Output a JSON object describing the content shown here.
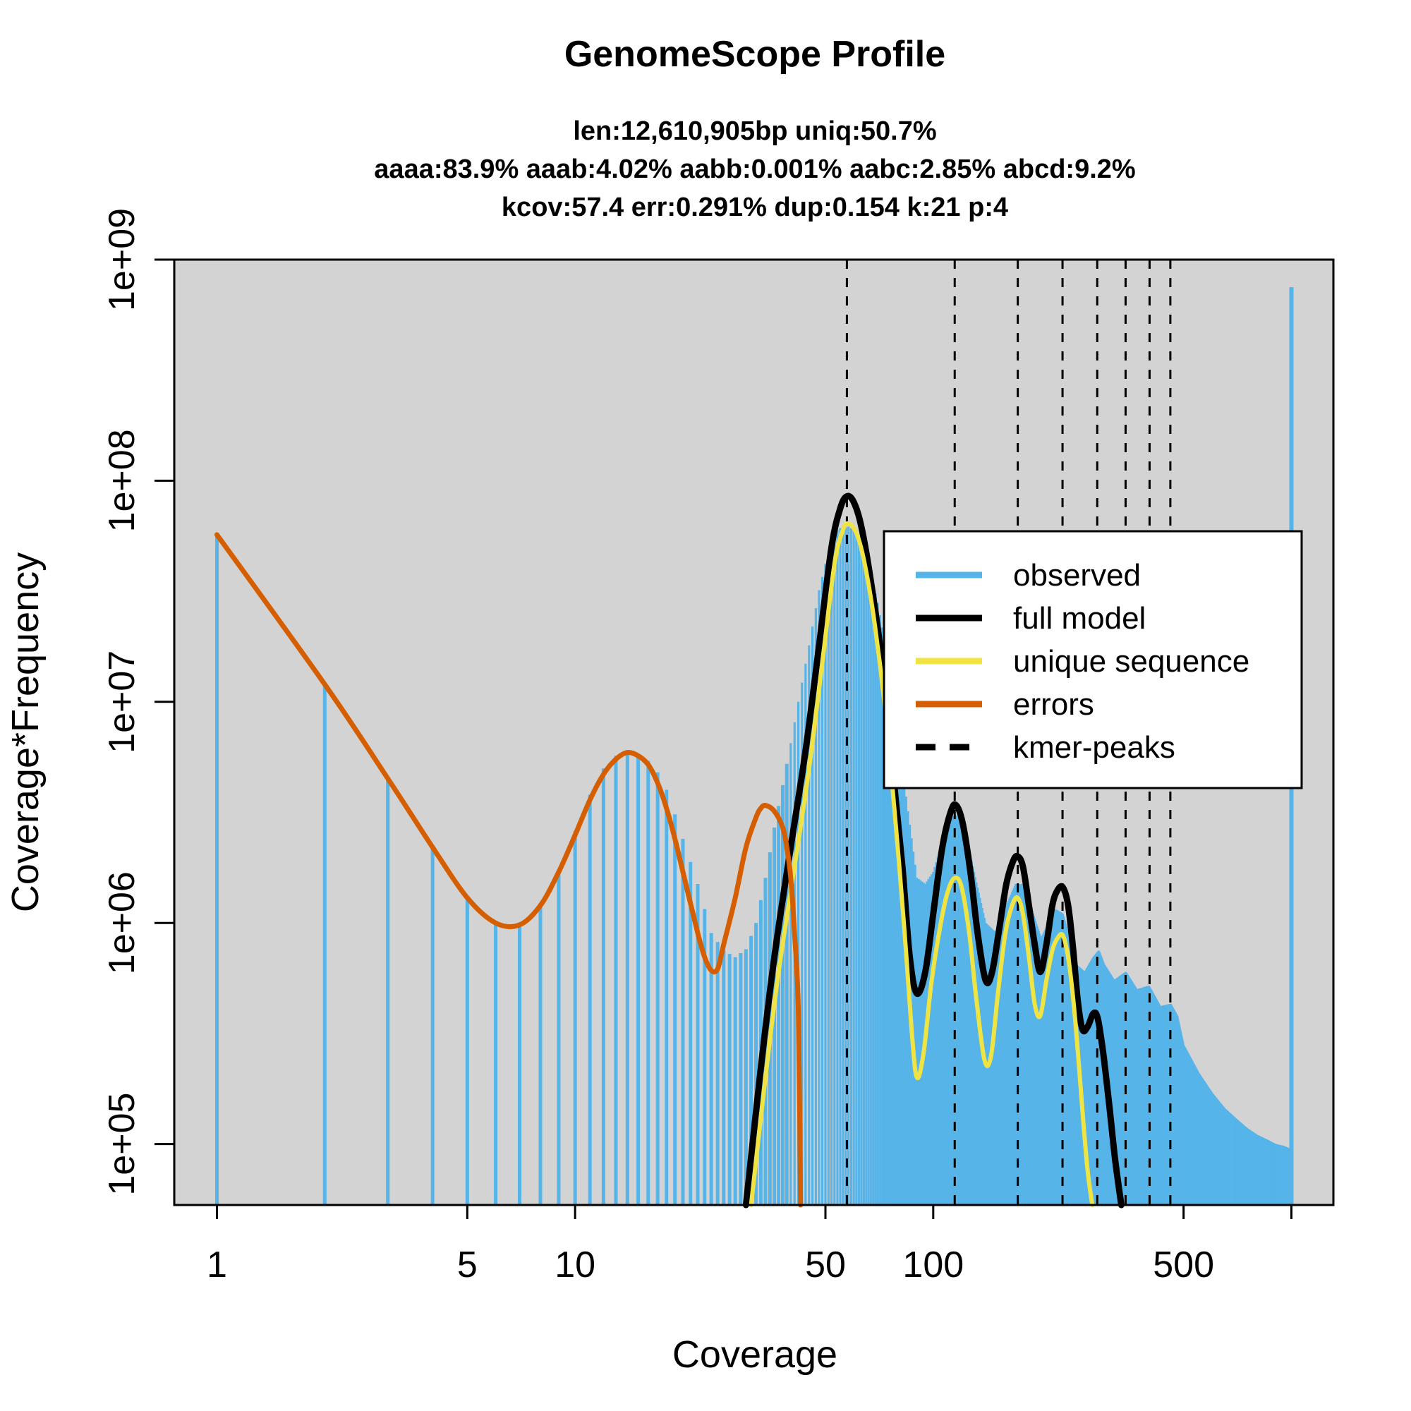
{
  "chart_data": {
    "type": "bar",
    "title": "GenomeScope Profile",
    "subtitle_lines": [
      "len:12,610,905bp uniq:50.7%",
      "aaaa:83.9% aaab:4.02% aabb:0.001% aabc:2.85% abcd:9.2%",
      "kcov:57.4 err:0.291%  dup:0.154  k:21 p:4"
    ],
    "xlabel": "Coverage",
    "ylabel": "Coverage*Frequency",
    "x_scale": "log",
    "y_scale": "log",
    "xlim": [
      0.76,
      1310
    ],
    "ylim": [
      53000,
      1000000000
    ],
    "x_ticks": [
      {
        "value": 1,
        "label": "1"
      },
      {
        "value": 5,
        "label": "5"
      },
      {
        "value": 10,
        "label": "10"
      },
      {
        "value": 50,
        "label": "50"
      },
      {
        "value": 100,
        "label": "100"
      },
      {
        "value": 500,
        "label": "500"
      },
      {
        "value": 1000,
        "label": ""
      }
    ],
    "y_ticks": [
      {
        "value": 100000,
        "label": "1e+05"
      },
      {
        "value": 1000000,
        "label": "1e+06"
      },
      {
        "value": 10000000,
        "label": "1e+07"
      },
      {
        "value": 100000000,
        "label": "1e+08"
      },
      {
        "value": 1000000000,
        "label": "1e+09"
      }
    ],
    "kmer_peaks": [
      57.4,
      114.8,
      172.2,
      229.6,
      287,
      344.4,
      401.8,
      459.2
    ],
    "colors": {
      "observed": "#56B4E9",
      "full_model": "#000000",
      "unique_sequence": "#F0E442",
      "errors": "#D55E00",
      "panel_background": "#D3D3D3"
    },
    "observed_profile": [
      [
        1,
        57000000
      ],
      [
        2,
        12000000
      ],
      [
        3,
        4600000
      ],
      [
        4,
        2200000
      ],
      [
        5,
        1300000
      ],
      [
        6,
        1000000
      ],
      [
        7,
        980000
      ],
      [
        8,
        1200000
      ],
      [
        9,
        1700000
      ],
      [
        10,
        2600000
      ],
      [
        11,
        3800000
      ],
      [
        12,
        5000000
      ],
      [
        13,
        5700000
      ],
      [
        14,
        5900000
      ],
      [
        15,
        5800000
      ],
      [
        16,
        5400000
      ],
      [
        17,
        4800000
      ],
      [
        18,
        4000000
      ],
      [
        19,
        3100000
      ],
      [
        20,
        2400000
      ],
      [
        22,
        1500000
      ],
      [
        24,
        900000
      ],
      [
        26,
        750000
      ],
      [
        28,
        700000
      ],
      [
        30,
        760000
      ],
      [
        32,
        1000000
      ],
      [
        34,
        1600000
      ],
      [
        36,
        2700000
      ],
      [
        38,
        4200000
      ],
      [
        40,
        6500000
      ],
      [
        42,
        10000000
      ],
      [
        45,
        18000000
      ],
      [
        48,
        32000000
      ],
      [
        51,
        48000000
      ],
      [
        54,
        60000000
      ],
      [
        57,
        63000000
      ],
      [
        60,
        60000000
      ],
      [
        63,
        52000000
      ],
      [
        66,
        42000000
      ],
      [
        70,
        28000000
      ],
      [
        75,
        15000000
      ],
      [
        80,
        7000000
      ],
      [
        85,
        3200000
      ],
      [
        90,
        1600000
      ],
      [
        95,
        1500000
      ],
      [
        100,
        1700000
      ],
      [
        105,
        2200000
      ],
      [
        110,
        2800000
      ],
      [
        115,
        3100000
      ],
      [
        120,
        2900000
      ],
      [
        125,
        2300000
      ],
      [
        130,
        1700000
      ],
      [
        140,
        1000000
      ],
      [
        150,
        900000
      ],
      [
        160,
        1200000
      ],
      [
        170,
        1500000
      ],
      [
        180,
        1500000
      ],
      [
        190,
        1100000
      ],
      [
        200,
        850000
      ],
      [
        210,
        1000000
      ],
      [
        220,
        1150000
      ],
      [
        230,
        1100000
      ],
      [
        240,
        850000
      ],
      [
        250,
        650000
      ],
      [
        265,
        600000
      ],
      [
        280,
        700000
      ],
      [
        290,
        750000
      ],
      [
        300,
        650000
      ],
      [
        320,
        550000
      ],
      [
        345,
        600000
      ],
      [
        370,
        500000
      ],
      [
        400,
        520000
      ],
      [
        430,
        420000
      ],
      [
        460,
        430000
      ],
      [
        480,
        380000
      ],
      [
        500,
        280000
      ],
      [
        550,
        210000
      ],
      [
        600,
        170000
      ],
      [
        650,
        145000
      ],
      [
        700,
        130000
      ],
      [
        750,
        118000
      ],
      [
        800,
        110000
      ],
      [
        850,
        105000
      ],
      [
        900,
        100000
      ],
      [
        950,
        98000
      ],
      [
        990,
        95000
      ]
    ],
    "observed_spike": [
      1000,
      750000000
    ],
    "series": [
      {
        "name": "full model",
        "points": [
          [
            30,
            53000
          ],
          [
            33,
            220000
          ],
          [
            36,
            700000
          ],
          [
            40,
            2200000
          ],
          [
            44,
            6000000
          ],
          [
            48,
            18000000
          ],
          [
            52,
            50000000
          ],
          [
            55,
            75000000
          ],
          [
            57.4,
            85000000
          ],
          [
            60,
            80000000
          ],
          [
            63,
            62000000
          ],
          [
            67,
            35000000
          ],
          [
            72,
            15000000
          ],
          [
            77,
            5000000
          ],
          [
            82,
            1800000
          ],
          [
            86,
            700000
          ],
          [
            90,
            480000
          ],
          [
            95,
            600000
          ],
          [
            100,
            1100000
          ],
          [
            106,
            2200000
          ],
          [
            112,
            3200000
          ],
          [
            116,
            3400000
          ],
          [
            121,
            2800000
          ],
          [
            127,
            1700000
          ],
          [
            133,
            900000
          ],
          [
            140,
            550000
          ],
          [
            146,
            600000
          ],
          [
            153,
            950000
          ],
          [
            160,
            1500000
          ],
          [
            167,
            1900000
          ],
          [
            172,
            2000000
          ],
          [
            178,
            1800000
          ],
          [
            185,
            1200000
          ],
          [
            192,
            800000
          ],
          [
            199,
            600000
          ],
          [
            207,
            800000
          ],
          [
            215,
            1200000
          ],
          [
            222,
            1400000
          ],
          [
            230,
            1450000
          ],
          [
            238,
            1200000
          ],
          [
            246,
            750000
          ],
          [
            253,
            450000
          ],
          [
            261,
            330000
          ],
          [
            270,
            340000
          ],
          [
            280,
            390000
          ],
          [
            288,
            370000
          ],
          [
            298,
            260000
          ],
          [
            310,
            150000
          ],
          [
            322,
            85000
          ],
          [
            335,
            53000
          ]
        ]
      },
      {
        "name": "unique sequence",
        "points": [
          [
            31,
            53000
          ],
          [
            34,
            200000
          ],
          [
            37,
            600000
          ],
          [
            41,
            1800000
          ],
          [
            45,
            5000000
          ],
          [
            49,
            15000000
          ],
          [
            53,
            42000000
          ],
          [
            56,
            60000000
          ],
          [
            58,
            64000000
          ],
          [
            61,
            58000000
          ],
          [
            64,
            44000000
          ],
          [
            68,
            25000000
          ],
          [
            73,
            10000000
          ],
          [
            78,
            3200000
          ],
          [
            83,
            950000
          ],
          [
            87,
            330000
          ],
          [
            90,
            200000
          ],
          [
            94,
            260000
          ],
          [
            99,
            550000
          ],
          [
            105,
            1000000
          ],
          [
            110,
            1400000
          ],
          [
            115,
            1600000
          ],
          [
            120,
            1450000
          ],
          [
            126,
            900000
          ],
          [
            132,
            450000
          ],
          [
            139,
            240000
          ],
          [
            145,
            250000
          ],
          [
            152,
            500000
          ],
          [
            159,
            900000
          ],
          [
            166,
            1200000
          ],
          [
            172,
            1300000
          ],
          [
            178,
            1100000
          ],
          [
            185,
            700000
          ],
          [
            192,
            430000
          ],
          [
            199,
            380000
          ],
          [
            207,
            550000
          ],
          [
            215,
            750000
          ],
          [
            222,
            850000
          ],
          [
            230,
            880000
          ],
          [
            238,
            700000
          ],
          [
            246,
            450000
          ],
          [
            254,
            250000
          ],
          [
            262,
            130000
          ],
          [
            270,
            75000
          ],
          [
            278,
            53000
          ]
        ]
      },
      {
        "name": "errors",
        "points": [
          [
            1,
            57000000
          ],
          [
            2,
            12000000
          ],
          [
            3,
            4500000
          ],
          [
            4,
            2200000
          ],
          [
            5,
            1300000
          ],
          [
            6,
            1000000
          ],
          [
            7,
            980000
          ],
          [
            8,
            1200000
          ],
          [
            9,
            1700000
          ],
          [
            10,
            2500000
          ],
          [
            11,
            3600000
          ],
          [
            12,
            4700000
          ],
          [
            13,
            5500000
          ],
          [
            14,
            5900000
          ],
          [
            15,
            5700000
          ],
          [
            16,
            5200000
          ],
          [
            17,
            4300000
          ],
          [
            18,
            3300000
          ],
          [
            19,
            2400000
          ],
          [
            20,
            1700000
          ],
          [
            22,
            900000
          ],
          [
            23,
            700000
          ],
          [
            24,
            610000
          ],
          [
            25,
            620000
          ],
          [
            26,
            800000
          ],
          [
            28,
            1300000
          ],
          [
            30,
            2200000
          ],
          [
            32,
            3000000
          ],
          [
            33,
            3300000
          ],
          [
            34,
            3400000
          ],
          [
            36,
            3200000
          ],
          [
            38,
            2700000
          ],
          [
            39,
            2200000
          ],
          [
            40,
            1600000
          ],
          [
            41,
            900000
          ],
          [
            42,
            400000
          ],
          [
            42.6,
            53000
          ]
        ]
      }
    ],
    "legend": {
      "placement": "top-right",
      "entries": [
        {
          "label": "observed",
          "color": "#56B4E9",
          "style": "solid"
        },
        {
          "label": "full model",
          "color": "#000000",
          "style": "solid"
        },
        {
          "label": "unique sequence",
          "color": "#F0E442",
          "style": "solid"
        },
        {
          "label": "errors",
          "color": "#D55E00",
          "style": "solid"
        },
        {
          "label": "kmer-peaks",
          "color": "#000000",
          "style": "dashed"
        }
      ]
    }
  }
}
